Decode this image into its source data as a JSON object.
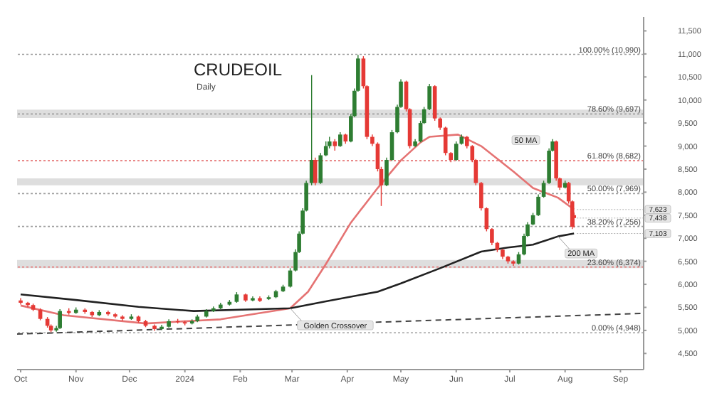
{
  "chart_data": {
    "type": "candlestick",
    "title": "CRUDEOIL",
    "subtitle": "Daily",
    "x": [
      "2023-10-01",
      "2023-10-05",
      "2023-10-08",
      "2023-10-12",
      "2023-10-16",
      "2023-10-18",
      "2023-10-21",
      "2023-10-23",
      "2023-10-28",
      "2023-11-01",
      "2023-11-06",
      "2023-11-10",
      "2023-11-14",
      "2023-11-19",
      "2023-11-23",
      "2023-11-27",
      "2023-12-02",
      "2023-12-06",
      "2023-12-10",
      "2023-12-15",
      "2023-12-19",
      "2023-12-23",
      "2023-12-28",
      "2024-01-01",
      "2024-01-05",
      "2024-01-08",
      "2024-01-13",
      "2024-01-17",
      "2024-01-21",
      "2024-01-26",
      "2024-01-30",
      "2024-02-04",
      "2024-02-08",
      "2024-02-12",
      "2024-02-17",
      "2024-02-21",
      "2024-02-25",
      "2024-02-29",
      "2024-03-03",
      "2024-03-05",
      "2024-03-07",
      "2024-03-09",
      "2024-03-12",
      "2024-03-14",
      "2024-03-17",
      "2024-03-20",
      "2024-03-22",
      "2024-03-25",
      "2024-03-28",
      "2024-03-31",
      "2024-04-03",
      "2024-04-05",
      "2024-04-07",
      "2024-04-10",
      "2024-04-12",
      "2024-04-15",
      "2024-04-18",
      "2024-04-20",
      "2024-04-23",
      "2024-04-26",
      "2024-04-29",
      "2024-05-01",
      "2024-05-04",
      "2024-05-06",
      "2024-05-09",
      "2024-05-12",
      "2024-05-14",
      "2024-05-17",
      "2024-05-20",
      "2024-05-23",
      "2024-05-26",
      "2024-05-29",
      "2024-06-01",
      "2024-06-04",
      "2024-06-07",
      "2024-06-10",
      "2024-06-12",
      "2024-06-15",
      "2024-06-18",
      "2024-06-21",
      "2024-06-24",
      "2024-06-27",
      "2024-06-30",
      "2024-07-03",
      "2024-07-06",
      "2024-07-09",
      "2024-07-11",
      "2024-07-14",
      "2024-07-17",
      "2024-07-20",
      "2024-07-23",
      "2024-07-25",
      "2024-07-27",
      "2024-07-29",
      "2024-08-01",
      "2024-08-03",
      "2024-08-05",
      "2024-08-06"
    ],
    "ohlc": [
      [
        5650,
        5700,
        5560,
        5600
      ],
      [
        5600,
        5620,
        5500,
        5550
      ],
      [
        5550,
        5580,
        5420,
        5450
      ],
      [
        5450,
        5480,
        5220,
        5250
      ],
      [
        5250,
        5290,
        5060,
        5100
      ],
      [
        5100,
        5130,
        4960,
        5000
      ],
      [
        5000,
        5100,
        4970,
        5050
      ],
      [
        5050,
        5460,
        5030,
        5420
      ],
      [
        5420,
        5480,
        5340,
        5380
      ],
      [
        5380,
        5500,
        5360,
        5450
      ],
      [
        5450,
        5480,
        5360,
        5400
      ],
      [
        5400,
        5420,
        5290,
        5330
      ],
      [
        5330,
        5440,
        5310,
        5400
      ],
      [
        5400,
        5430,
        5320,
        5350
      ],
      [
        5350,
        5380,
        5270,
        5300
      ],
      [
        5300,
        5330,
        5210,
        5250
      ],
      [
        5250,
        5350,
        5230,
        5300
      ],
      [
        5300,
        5320,
        5170,
        5200
      ],
      [
        5200,
        5230,
        5070,
        5100
      ],
      [
        5100,
        5130,
        4990,
        5030
      ],
      [
        5030,
        5120,
        5010,
        5080
      ],
      [
        5080,
        5240,
        5060,
        5200
      ],
      [
        5200,
        5250,
        5150,
        5180
      ],
      [
        5180,
        5210,
        5110,
        5150
      ],
      [
        5150,
        5240,
        5130,
        5200
      ],
      [
        5200,
        5340,
        5180,
        5300
      ],
      [
        5300,
        5460,
        5280,
        5420
      ],
      [
        5420,
        5520,
        5400,
        5480
      ],
      [
        5480,
        5600,
        5460,
        5560
      ],
      [
        5560,
        5660,
        5540,
        5620
      ],
      [
        5620,
        5830,
        5600,
        5780
      ],
      [
        5780,
        5800,
        5620,
        5650
      ],
      [
        5650,
        5740,
        5630,
        5700
      ],
      [
        5700,
        5740,
        5620,
        5640
      ],
      [
        5680,
        5760,
        5660,
        5720
      ],
      [
        5720,
        5880,
        5700,
        5850
      ],
      [
        5850,
        5990,
        5830,
        5950
      ],
      [
        5950,
        6350,
        5930,
        6300
      ],
      [
        6300,
        6760,
        6280,
        6700
      ],
      [
        6700,
        7150,
        6680,
        7100
      ],
      [
        7100,
        7650,
        7080,
        7600
      ],
      [
        7600,
        8250,
        7580,
        8200
      ],
      [
        8200,
        10540,
        8150,
        8700
      ],
      [
        8700,
        8750,
        8150,
        8200
      ],
      [
        8200,
        8850,
        8180,
        8800
      ],
      [
        8800,
        9100,
        8780,
        9000
      ],
      [
        9000,
        9200,
        8950,
        9100
      ],
      [
        9100,
        9150,
        8900,
        9000
      ],
      [
        9000,
        9300,
        8980,
        9250
      ],
      [
        9250,
        9270,
        9050,
        9100
      ],
      [
        9100,
        9700,
        9080,
        9650
      ],
      [
        9650,
        10250,
        9630,
        10200
      ],
      [
        10200,
        10980,
        10180,
        10900
      ],
      [
        10900,
        10950,
        10250,
        10300
      ],
      [
        10300,
        10320,
        9150,
        9200
      ],
      [
        9200,
        9250,
        9000,
        9050
      ],
      [
        9050,
        9080,
        8450,
        8500
      ],
      [
        8500,
        8550,
        7700,
        8150
      ],
      [
        8150,
        8750,
        8130,
        8700
      ],
      [
        8700,
        9350,
        8680,
        9300
      ],
      [
        9300,
        9900,
        9280,
        9850
      ],
      [
        9850,
        10450,
        9830,
        10400
      ],
      [
        10400,
        10420,
        9750,
        9800
      ],
      [
        9800,
        9820,
        8950,
        9000
      ],
      [
        9000,
        9150,
        8980,
        9100
      ],
      [
        9100,
        9550,
        9080,
        9500
      ],
      [
        9500,
        9850,
        9480,
        9800
      ],
      [
        9800,
        10350,
        9780,
        10300
      ],
      [
        10300,
        10320,
        9550,
        9600
      ],
      [
        9600,
        9620,
        9350,
        9400
      ],
      [
        9400,
        9420,
        8800,
        8850
      ],
      [
        8850,
        8870,
        8650,
        8700
      ],
      [
        8700,
        9100,
        8680,
        9050
      ],
      [
        9050,
        9250,
        9030,
        9200
      ],
      [
        9200,
        9220,
        8950,
        9000
      ],
      [
        9000,
        9020,
        8650,
        8700
      ],
      [
        8700,
        8720,
        8150,
        8200
      ],
      [
        8200,
        8220,
        7600,
        7650
      ],
      [
        7650,
        7670,
        7150,
        7200
      ],
      [
        7200,
        7220,
        6850,
        6900
      ],
      [
        6900,
        6920,
        6700,
        6750
      ],
      [
        6750,
        6770,
        6550,
        6600
      ],
      [
        6600,
        6620,
        6450,
        6500
      ],
      [
        6500,
        6520,
        6400,
        6450
      ],
      [
        6450,
        6700,
        6430,
        6650
      ],
      [
        6650,
        7100,
        6630,
        7050
      ],
      [
        7050,
        7350,
        7030,
        7300
      ],
      [
        7300,
        7550,
        7280,
        7500
      ],
      [
        7500,
        7950,
        7480,
        7900
      ],
      [
        7900,
        8250,
        7880,
        8200
      ],
      [
        8200,
        8950,
        8180,
        8900
      ],
      [
        8900,
        9150,
        8880,
        9100
      ],
      [
        9100,
        9120,
        8250,
        8300
      ],
      [
        8300,
        8320,
        8050,
        8100
      ],
      [
        8100,
        8250,
        8080,
        8200
      ],
      [
        8200,
        8220,
        7750,
        7800
      ],
      [
        7800,
        7820,
        7200,
        7250
      ],
      [
        7500,
        7560,
        7230,
        7438
      ]
    ],
    "series": [
      {
        "type": "line",
        "color": "#e57373",
        "x": [
          "2023-10-01",
          "2023-10-25",
          "2023-12-10",
          "2024-01-07",
          "2024-01-21",
          "2024-02-29",
          "2024-03-10",
          "2024-03-20",
          "2024-04-03",
          "2024-04-18",
          "2024-05-01",
          "2024-05-12",
          "2024-05-17",
          "2024-06-02",
          "2024-06-15",
          "2024-07-03",
          "2024-07-14",
          "2024-07-28",
          "2024-08-06"
        ],
        "values": [
          5540,
          5330,
          5150,
          5210,
          5240,
          5480,
          5840,
          6440,
          7340,
          8090,
          8690,
          9080,
          9200,
          9250,
          9000,
          8450,
          8090,
          7880,
          7623
        ]
      },
      {
        "type": "line",
        "color": "#212121",
        "x": [
          "2023-10-01",
          "2023-11-01",
          "2023-12-06",
          "2024-01-06",
          "2024-02-29",
          "2024-03-20",
          "2024-04-18",
          "2024-05-01",
          "2024-05-23",
          "2024-06-15",
          "2024-06-30",
          "2024-07-14",
          "2024-07-28",
          "2024-08-06"
        ],
        "values": [
          5780,
          5660,
          5510,
          5420,
          5480,
          5630,
          5840,
          6020,
          6350,
          6710,
          6800,
          6860,
          7040,
          7103
        ]
      },
      {
        "type": "line",
        "color": "#424242",
        "line_style": "dashed",
        "x": [
          "2023-09-29",
          "2024-09-14"
        ],
        "values": [
          4920,
          5370
        ]
      }
    ],
    "xlim": [
      "2023-09-29",
      "2024-09-14"
    ],
    "xticks": [
      {
        "value": "2023-10-01",
        "label": "Oct"
      },
      {
        "value": "2023-11-01",
        "label": "Nov"
      },
      {
        "value": "2023-12-01",
        "label": "Dec"
      },
      {
        "value": "2024-01-01",
        "label": "2024"
      },
      {
        "value": "2024-02-01",
        "label": "Feb"
      },
      {
        "value": "2024-03-01",
        "label": "Mar"
      },
      {
        "value": "2024-04-01",
        "label": "Apr"
      },
      {
        "value": "2024-05-01",
        "label": "May"
      },
      {
        "value": "2024-06-01",
        "label": "Jun"
      },
      {
        "value": "2024-07-01",
        "label": "Jul"
      },
      {
        "value": "2024-08-01",
        "label": "Aug"
      },
      {
        "value": "2024-09-01",
        "label": "Sep"
      }
    ],
    "ylim": [
      4150,
      11800
    ],
    "yticks": [
      {
        "value": 4500,
        "label": "4,500"
      },
      {
        "value": 5000,
        "label": "5,000"
      },
      {
        "value": 5500,
        "label": "5,500"
      },
      {
        "value": 6000,
        "label": "6,000"
      },
      {
        "value": 6500,
        "label": "6,500"
      },
      {
        "value": 7000,
        "label": "7,000"
      },
      {
        "value": 7500,
        "label": "7,500"
      },
      {
        "value": 8000,
        "label": "8,000"
      },
      {
        "value": 8500,
        "label": "8,500"
      },
      {
        "value": 9000,
        "label": "9,000"
      },
      {
        "value": 9500,
        "label": "9,500"
      },
      {
        "value": 10000,
        "label": "10,000"
      },
      {
        "value": 10500,
        "label": "10,500"
      },
      {
        "value": 11000,
        "label": "11,000"
      },
      {
        "value": 11500,
        "label": "11,500"
      }
    ],
    "ref_lines": [
      {
        "axis": "y",
        "value": 10990,
        "label": "100.00% (10,990)",
        "color": "#9e9e9e",
        "line_style": "dotted"
      },
      {
        "axis": "y",
        "value": 9697,
        "label": "78.60% (9,697)",
        "color": "#9e9e9e",
        "line_style": "dotted"
      },
      {
        "axis": "y",
        "value": 8682,
        "label": "61.80% (8,682)",
        "color": "#e57373",
        "line_style": "dotted"
      },
      {
        "axis": "y",
        "value": 7969,
        "label": "50.00% (7,969)",
        "color": "#9e9e9e",
        "line_style": "dotted"
      },
      {
        "axis": "y",
        "value": 7256,
        "label": "38.20% (7,256)",
        "color": "#9e9e9e",
        "line_style": "dotted"
      },
      {
        "axis": "y",
        "value": 6374,
        "label": "23.60% (6,374)",
        "color": "#e57373",
        "line_style": "dotted"
      },
      {
        "axis": "y",
        "value": 4948,
        "label": "0.00% (4,948)",
        "color": "#9e9e9e",
        "line_style": "dotted"
      }
    ],
    "bands": [
      {
        "axis": "y",
        "from": 9610,
        "to": 9790,
        "color": "#d6d6d6"
      },
      {
        "axis": "y",
        "from": 8150,
        "to": 8300,
        "color": "#d6d6d6"
      },
      {
        "axis": "y",
        "from": 6350,
        "to": 6530,
        "color": "#d6d6d6"
      }
    ],
    "annotations": [
      {
        "text": "50 MA",
        "x": "2024-07-10",
        "y": 9130
      },
      {
        "text": "200 MA",
        "x": "2024-07-28",
        "y": 7040
      },
      {
        "text": "Golden Crossover",
        "x": "2024-02-29",
        "y": 5480
      },
      {
        "text": "7,623",
        "x": "2024-08-06",
        "y": 7623
      },
      {
        "text": "7,438",
        "x": "2024-08-06",
        "y": 7438
      },
      {
        "text": "7,103",
        "x": "2024-08-06",
        "y": 7103
      }
    ]
  }
}
